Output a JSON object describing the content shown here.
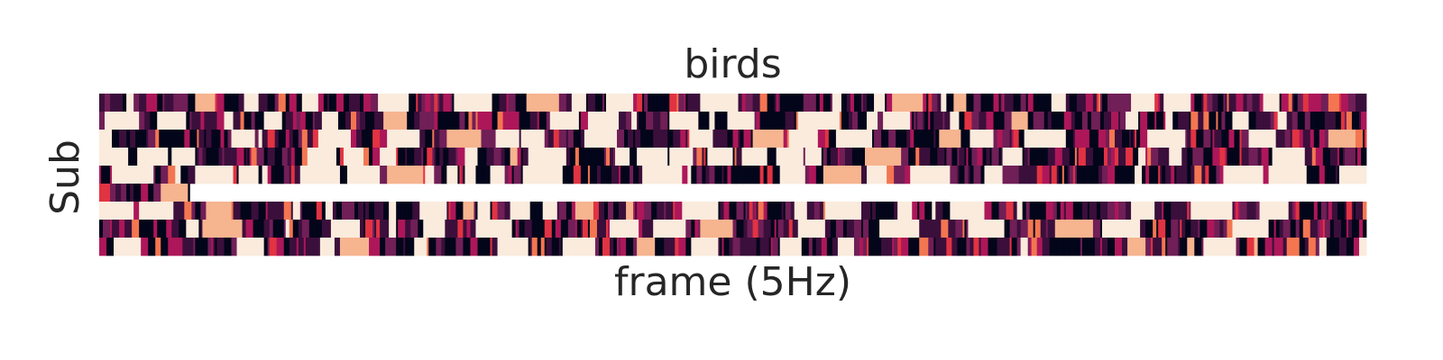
{
  "chart_data": {
    "type": "heatmap",
    "title": "birds",
    "xlabel": "frame (5Hz)",
    "ylabel": "Sub",
    "rows": 9,
    "columns": 700,
    "colormap": [
      "#03051a",
      "#3b0f3b",
      "#701f57",
      "#ad1759",
      "#e13342",
      "#f37651",
      "#f6b48f",
      "#faebdd"
    ],
    "missing_row": 5,
    "missing_row_visible_columns": 50,
    "grid": false,
    "legend": "none",
    "colorbar": false
  }
}
